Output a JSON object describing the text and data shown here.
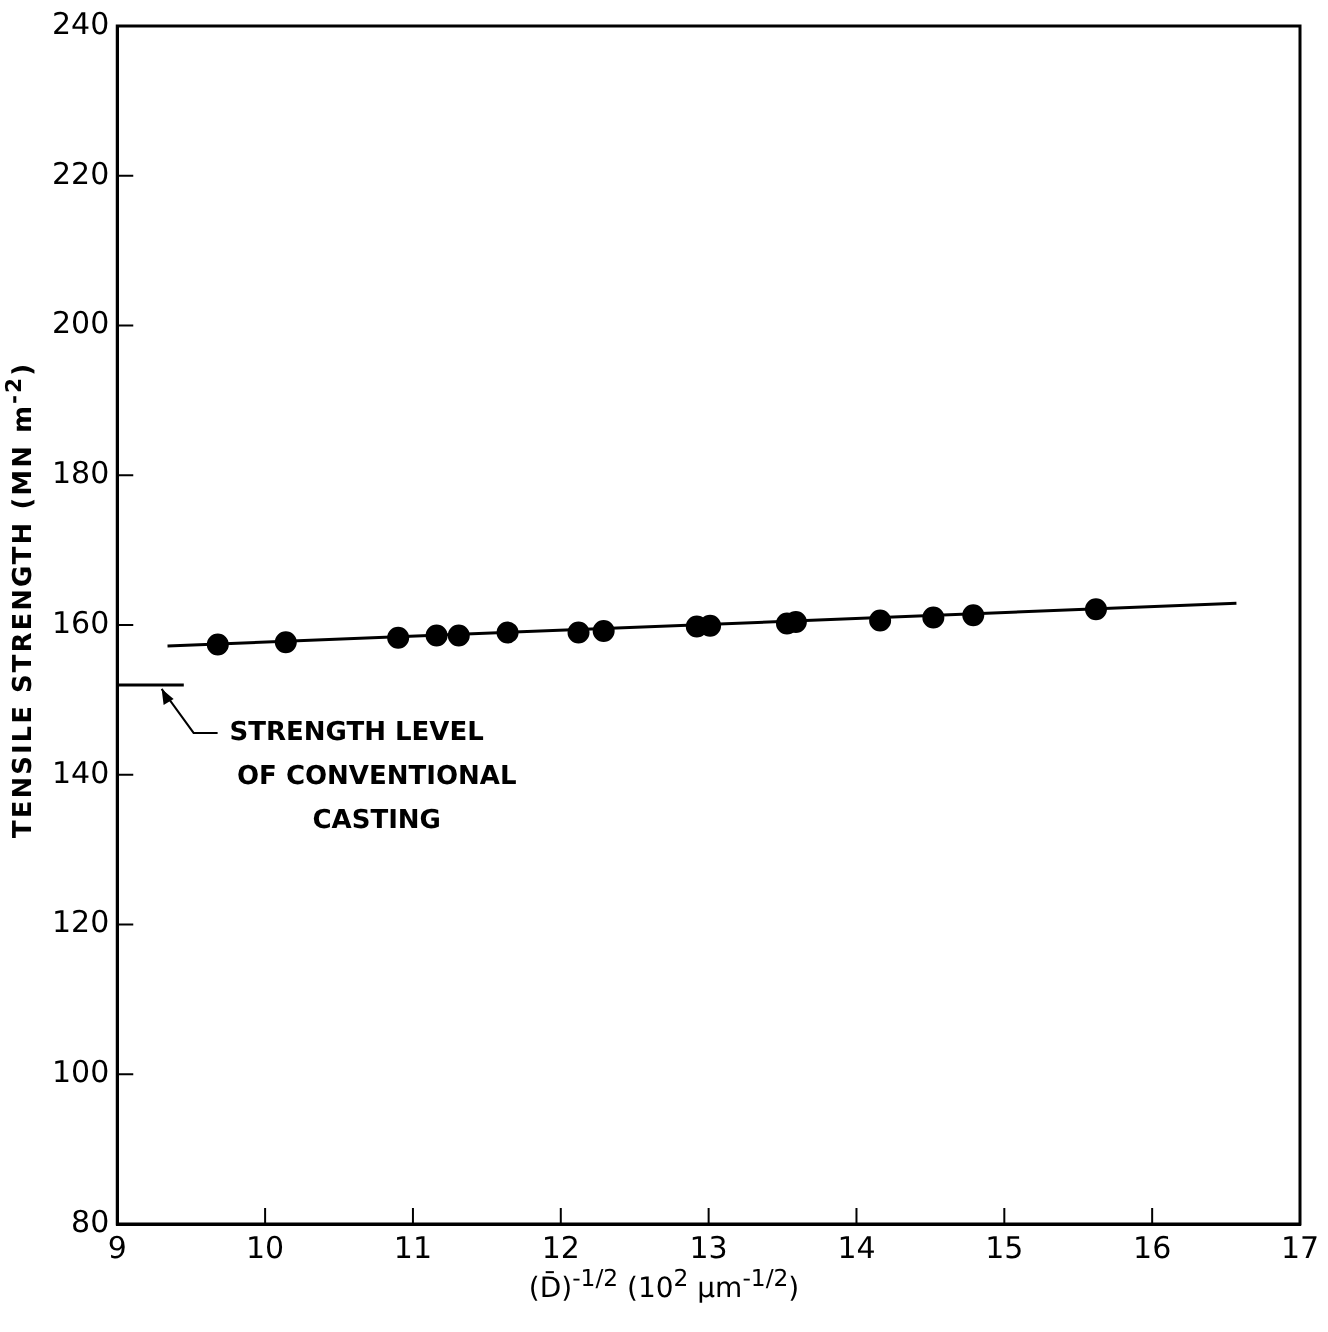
{
  "chart_data": {
    "type": "scatter",
    "xlabel": "(D̄)$^{-1/2}$  (10$^{2}$ μm$^{-1/2}$)",
    "ylabel": "TENSILE STRENGTH (MN m$^{-2}$)",
    "xlim": [
      9,
      17
    ],
    "xticks": [
      9,
      10,
      11,
      12,
      13,
      14,
      15,
      16,
      17
    ],
    "ylim": [
      80,
      240
    ],
    "yticks": [
      80,
      100,
      120,
      140,
      160,
      180,
      200,
      220,
      240
    ],
    "grid": false,
    "legend": false,
    "series": [
      {
        "marker": "circle",
        "color": "#000000",
        "x": [
          9.68,
          10.14,
          10.9,
          11.16,
          11.31,
          11.64,
          12.12,
          12.29,
          12.92,
          13.01,
          13.53,
          13.59,
          14.16,
          14.52,
          14.79,
          15.62
        ],
        "values": [
          157.4,
          157.7,
          158.3,
          158.6,
          158.6,
          159.0,
          159.0,
          159.2,
          159.8,
          159.9,
          160.2,
          160.4,
          160.6,
          161.0,
          161.3,
          162.1
        ]
      },
      {
        "type": "line",
        "marker": "none",
        "line_style": "solid",
        "color": "#000000",
        "x": [
          9.34,
          16.57
        ],
        "values": [
          157.2,
          162.9
        ]
      },
      {
        "type": "line",
        "marker": "none",
        "line_style": "solid",
        "color": "#000000",
        "x": [
          9,
          9.45
        ],
        "values": [
          152,
          152
        ]
      }
    ],
    "annotations": [
      {
        "text": "STRENGTH LEVEL\nOF CONVENTIONAL\nCASTING",
        "x": 9.3,
        "y": 152
      }
    ]
  }
}
